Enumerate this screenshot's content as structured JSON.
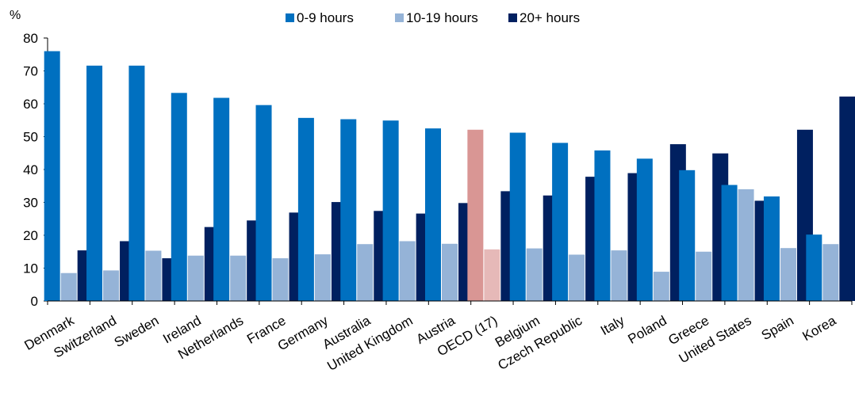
{
  "chart_data": {
    "type": "bar",
    "ylabel": "%",
    "ylim": [
      0,
      80
    ],
    "yticks": [
      0,
      10,
      20,
      30,
      40,
      50,
      60,
      70,
      80
    ],
    "grid": false,
    "legend_position": "top-center",
    "categories": [
      "Denmark",
      "Switzerland",
      "Sweden",
      "Ireland",
      "Netherlands",
      "France",
      "Germany",
      "Australia",
      "United Kingdom",
      "Austria",
      "OECD (17)",
      "Belgium",
      "Czech Republic",
      "Italy",
      "Poland",
      "Greece",
      "United States",
      "Spain",
      "Korea"
    ],
    "series": [
      {
        "name": "0-9 hours",
        "color": "#0070c0",
        "values": [
          76.0,
          71.6,
          71.6,
          63.3,
          61.8,
          59.6,
          55.7,
          55.3,
          54.9,
          52.5,
          52.1,
          51.2,
          48.1,
          45.8,
          43.3,
          39.8,
          35.3,
          31.8,
          20.2
        ]
      },
      {
        "name": "10-19 hours",
        "color": "#95b3d7",
        "values": [
          8.5,
          9.3,
          15.3,
          13.8,
          13.8,
          13.0,
          14.2,
          17.3,
          18.2,
          17.4,
          15.7,
          16.0,
          14.1,
          15.4,
          8.9,
          15.0,
          34.0,
          16.1,
          17.3
        ]
      },
      {
        "name": "20+ hours",
        "color": "#002060",
        "values": [
          15.4,
          18.2,
          13.0,
          22.5,
          24.5,
          26.9,
          30.1,
          27.4,
          26.6,
          29.8,
          33.4,
          32.1,
          37.8,
          38.9,
          47.7,
          44.9,
          30.5,
          52.1,
          62.2
        ]
      }
    ],
    "highlight": {
      "category": "OECD (17)",
      "colors": [
        "#d99694",
        "#e6b9b8",
        "#002060"
      ]
    }
  }
}
